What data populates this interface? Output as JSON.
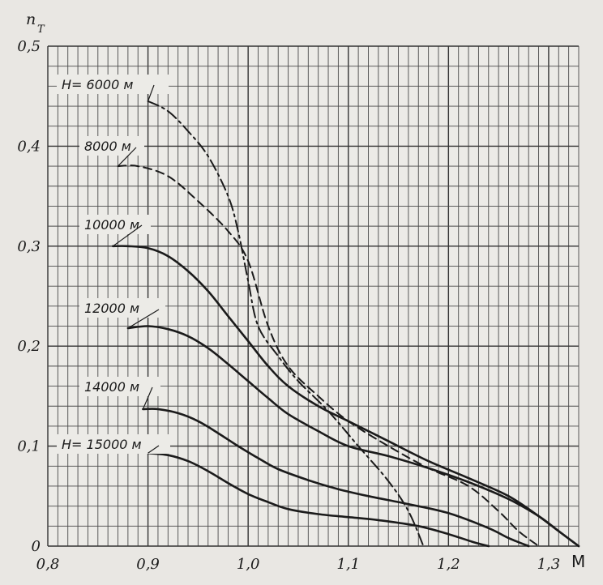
{
  "chart_data": {
    "type": "line",
    "title": "",
    "xlabel": "M",
    "ylabel": "n_T",
    "ylabel_main": "n",
    "ylabel_sub": "T",
    "xlim": [
      0.8,
      1.33
    ],
    "ylim": [
      0,
      0.5
    ],
    "grid": true,
    "x_ticks": [
      0.8,
      0.9,
      1.0,
      1.1,
      1.2,
      1.3
    ],
    "x_tick_labels": [
      "0,8",
      "0,9",
      "1,0",
      "1,1",
      "1,2",
      "1,3"
    ],
    "y_ticks": [
      0,
      0.1,
      0.2,
      0.3,
      0.4,
      0.5
    ],
    "y_tick_labels": [
      "0",
      "0,1",
      "0,2",
      "0,3",
      "0,4",
      "0,5"
    ],
    "series": [
      {
        "name": "H= 6000 м",
        "label": "H= 6000 м",
        "style": "dashdot",
        "x": [
          0.9,
          0.92,
          0.94,
          0.96,
          0.98,
          0.99,
          1.0,
          1.01,
          1.03,
          1.05,
          1.08,
          1.11,
          1.14,
          1.16,
          1.175
        ],
        "y": [
          0.445,
          0.435,
          0.415,
          0.39,
          0.35,
          0.315,
          0.265,
          0.22,
          0.19,
          0.165,
          0.135,
          0.1,
          0.065,
          0.035,
          0.0
        ]
      },
      {
        "name": "8000 м",
        "label": "8000 м",
        "style": "dashed",
        "x": [
          0.87,
          0.89,
          0.92,
          0.95,
          0.98,
          1.0,
          1.02,
          1.04,
          1.07,
          1.1,
          1.14,
          1.18,
          1.22,
          1.25,
          1.27,
          1.29
        ],
        "y": [
          0.38,
          0.38,
          0.37,
          0.345,
          0.315,
          0.285,
          0.22,
          0.18,
          0.15,
          0.125,
          0.1,
          0.078,
          0.06,
          0.035,
          0.015,
          0.0
        ]
      },
      {
        "name": "10000 м",
        "label": "10000 м",
        "style": "solid",
        "x": [
          0.865,
          0.88,
          0.9,
          0.92,
          0.94,
          0.96,
          0.98,
          1.0,
          1.02,
          1.04,
          1.07,
          1.1,
          1.14,
          1.18,
          1.22,
          1.26,
          1.29,
          1.31,
          1.33
        ],
        "y": [
          0.3,
          0.3,
          0.298,
          0.29,
          0.275,
          0.255,
          0.23,
          0.205,
          0.18,
          0.16,
          0.14,
          0.125,
          0.105,
          0.085,
          0.068,
          0.05,
          0.03,
          0.015,
          0.0
        ]
      },
      {
        "name": "12000 м",
        "label": "12000 м",
        "style": "solid",
        "x": [
          0.88,
          0.9,
          0.92,
          0.94,
          0.96,
          0.98,
          1.0,
          1.02,
          1.04,
          1.07,
          1.1,
          1.14,
          1.18,
          1.22,
          1.26,
          1.29,
          1.31,
          1.33
        ],
        "y": [
          0.218,
          0.22,
          0.217,
          0.21,
          0.198,
          0.182,
          0.165,
          0.148,
          0.132,
          0.115,
          0.1,
          0.09,
          0.078,
          0.064,
          0.047,
          0.03,
          0.015,
          0.0
        ]
      },
      {
        "name": "14000 м",
        "label": "14000 м",
        "style": "solid",
        "x": [
          0.895,
          0.91,
          0.93,
          0.95,
          0.97,
          0.99,
          1.01,
          1.03,
          1.06,
          1.09,
          1.12,
          1.16,
          1.2,
          1.24,
          1.26,
          1.28
        ],
        "y": [
          0.137,
          0.137,
          0.133,
          0.125,
          0.113,
          0.1,
          0.088,
          0.077,
          0.066,
          0.057,
          0.05,
          0.042,
          0.033,
          0.018,
          0.008,
          0.0
        ]
      },
      {
        "name": "H= 15000 м",
        "label": "H= 15000 м",
        "style": "solid",
        "x": [
          0.9,
          0.92,
          0.94,
          0.96,
          0.98,
          1.0,
          1.02,
          1.04,
          1.07,
          1.1,
          1.13,
          1.17,
          1.2,
          1.225,
          1.24
        ],
        "y": [
          0.093,
          0.091,
          0.085,
          0.075,
          0.063,
          0.052,
          0.044,
          0.037,
          0.032,
          0.029,
          0.026,
          0.02,
          0.012,
          0.004,
          0.0
        ]
      }
    ]
  }
}
